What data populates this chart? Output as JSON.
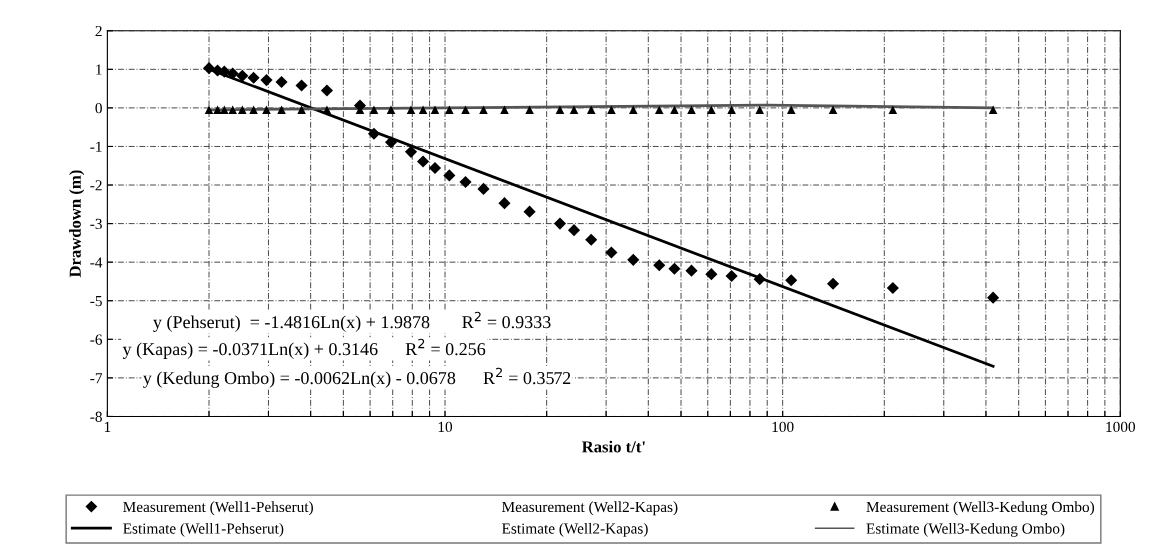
{
  "chart_data": {
    "type": "scatter",
    "xlabel": "Rasio t/t'",
    "ylabel": "Drawdown (m)",
    "log": "x",
    "xlim": [
      1,
      1000
    ],
    "ylim": [
      -8,
      2
    ],
    "xticks": [
      1,
      {
        "value": 2,
        "label": null
      },
      {
        "value": 3,
        "label": null
      },
      {
        "value": 4,
        "label": null
      },
      {
        "value": 5,
        "label": null
      },
      {
        "value": 6,
        "label": null
      },
      {
        "value": 7,
        "label": null
      },
      {
        "value": 8,
        "label": null
      },
      {
        "value": 9,
        "label": null
      },
      10,
      {
        "value": 20,
        "label": null
      },
      {
        "value": 30,
        "label": null
      },
      {
        "value": 40,
        "label": null
      },
      {
        "value": 50,
        "label": null
      },
      {
        "value": 60,
        "label": null
      },
      {
        "value": 70,
        "label": null
      },
      {
        "value": 80,
        "label": null
      },
      {
        "value": 90,
        "label": null
      },
      100,
      {
        "value": 200,
        "label": null
      },
      {
        "value": 300,
        "label": null
      },
      {
        "value": 400,
        "label": null
      },
      {
        "value": 500,
        "label": null
      },
      {
        "value": 600,
        "label": null
      },
      {
        "value": 700,
        "label": null
      },
      {
        "value": 800,
        "label": null
      },
      {
        "value": 900,
        "label": null
      },
      1000
    ],
    "yticks": [
      -8,
      -7,
      -6,
      -5,
      -4,
      -3,
      -2,
      -1,
      0,
      1,
      2
    ],
    "grid": true,
    "legend": "bottom",
    "series": [
      {
        "name": "Measurement (Well1-Pehserut)",
        "marker": "diamond",
        "color": "#000000",
        "x": [
          2,
          2.12,
          2.22,
          2.35,
          2.51,
          2.71,
          2.96,
          3.28,
          3.76,
          4.47,
          5.6,
          6.16,
          6.92,
          7.93,
          8.61,
          9.34,
          10.3,
          11.5,
          13,
          15,
          17.8,
          21.9,
          24.1,
          27.1,
          31.1,
          36.1,
          43.1,
          47.8,
          53.7,
          61.5,
          70.6,
          85.5,
          106,
          141,
          212,
          420
        ],
        "values": [
          1.03,
          0.97,
          0.94,
          0.89,
          0.83,
          0.78,
          0.72,
          0.67,
          0.58,
          0.45,
          0.06,
          -0.67,
          -0.89,
          -1.14,
          -1.39,
          -1.56,
          -1.75,
          -1.92,
          -2.1,
          -2.47,
          -2.69,
          -3.0,
          -3.17,
          -3.42,
          -3.75,
          -3.94,
          -4.08,
          -4.17,
          -4.22,
          -4.31,
          -4.36,
          -4.44,
          -4.47,
          -4.56,
          -4.67,
          -4.92
        ]
      },
      {
        "name": "Estimate (Well1-Pehserut)",
        "type": "line",
        "marker": "none",
        "color": "#000000",
        "x": [
          2,
          420
        ],
        "values": [
          1.0,
          -6.7
        ]
      },
      {
        "name": "Measurement (Well2-Kapas)"
      },
      {
        "name": "Estimate (Well2-Kapas)",
        "type": "line"
      },
      {
        "name": "Measurement (Well3-Kedung Ombo)",
        "marker": "triangle",
        "color": "#000000",
        "x": [
          2,
          2.12,
          2.22,
          2.35,
          2.51,
          2.71,
          2.96,
          3.28,
          3.76,
          4.47,
          5.6,
          6.16,
          6.92,
          7.93,
          8.61,
          9.34,
          10.3,
          11.5,
          13,
          15,
          17.8,
          21.9,
          24.1,
          27.1,
          31.1,
          36.1,
          43.1,
          47.8,
          53.7,
          61.5,
          70.6,
          85.5,
          106,
          141,
          212,
          420
        ],
        "values": [
          -0.05,
          -0.05,
          -0.05,
          -0.05,
          -0.05,
          -0.05,
          -0.05,
          -0.05,
          -0.05,
          -0.05,
          -0.05,
          -0.05,
          -0.05,
          -0.05,
          -0.05,
          -0.05,
          -0.05,
          -0.05,
          -0.05,
          -0.05,
          -0.05,
          -0.05,
          -0.05,
          -0.05,
          -0.05,
          -0.05,
          -0.05,
          -0.05,
          -0.05,
          -0.05,
          -0.05,
          -0.05,
          -0.05,
          -0.05,
          -0.05,
          -0.05
        ]
      },
      {
        "name": "Estimate (Well3-Kedung Ombo)",
        "type": "line",
        "marker": "none",
        "color": "#555555",
        "x": [
          2,
          90,
          420
        ],
        "values": [
          -0.05,
          0.07,
          0.0
        ]
      }
    ],
    "annotations": [
      "y (Pehserut)  = -1.4816Ln(x) + 1.9878       R$^{2}$ = 0.9333",
      "y (Kapas) = -0.0371Ln(x) + 0.3146      R$^{2}$ = 0.256",
      "y (Kedung Ombo) = -0.0062Ln(x) - 0.0678      R$^{2}$ = 0.3572"
    ]
  }
}
